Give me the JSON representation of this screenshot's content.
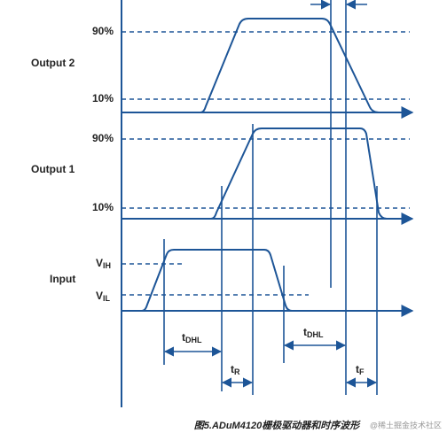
{
  "rows": [
    {
      "label": "Output 2",
      "high": "90%",
      "low": "10%"
    },
    {
      "label": "Output 1",
      "high": "90%",
      "low": "10%"
    },
    {
      "label": "Input",
      "high": {
        "main": "V",
        "sub": "IH"
      },
      "low": {
        "main": "V",
        "sub": "IL"
      }
    }
  ],
  "timings": [
    {
      "main": "t",
      "sub": "DHL"
    },
    {
      "main": "t",
      "sub": "R"
    },
    {
      "main": "t",
      "sub": "DHL"
    },
    {
      "main": "t",
      "sub": "F"
    }
  ],
  "caption": "图5.ADuM4120栅极驱动器和时序波形",
  "watermark": "@稀土掘金技术社区"
}
